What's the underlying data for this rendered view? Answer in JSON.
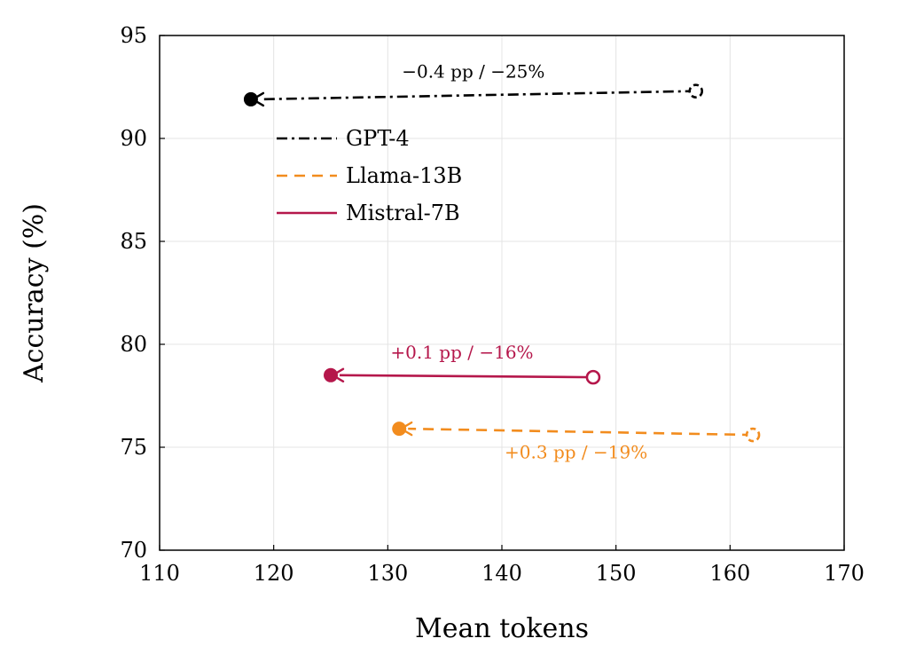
{
  "chart_data": {
    "type": "scatter",
    "title": "",
    "xlabel": "Mean tokens",
    "ylabel": "Accuracy (%)",
    "xlim": [
      110,
      170
    ],
    "ylim": [
      70,
      95
    ],
    "xticks": [
      110,
      120,
      130,
      140,
      150,
      160,
      170
    ],
    "yticks": [
      70,
      75,
      80,
      85,
      90,
      95
    ],
    "grid": true,
    "legend_position": "top-left",
    "series": [
      {
        "name": "GPT-4",
        "color": "#000000",
        "style": "dashdot",
        "from": {
          "x": 157,
          "y": 92.3
        },
        "to": {
          "x": 118,
          "y": 91.9
        },
        "annotation": "−0.4 pp / −25%"
      },
      {
        "name": "Llama-13B",
        "color": "#f28c1e",
        "style": "dashed",
        "from": {
          "x": 162,
          "y": 75.6
        },
        "to": {
          "x": 131,
          "y": 75.9
        },
        "annotation": "+0.3 pp / −19%"
      },
      {
        "name": "Mistral-7B",
        "color": "#b5174b",
        "style": "solid",
        "from": {
          "x": 148,
          "y": 78.4
        },
        "to": {
          "x": 125,
          "y": 78.5
        },
        "annotation": "+0.1 pp / −16%"
      }
    ]
  }
}
